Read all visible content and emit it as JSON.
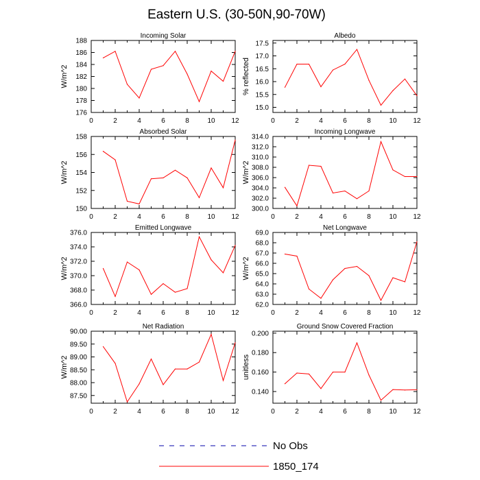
{
  "figure": {
    "title": "Eastern U.S. (30-50N,90-70W)",
    "line_color": "#ff0000",
    "obs_color": "#0000aa"
  },
  "legend": {
    "items": [
      {
        "label": "No Obs",
        "style": "dashed",
        "color": "#0000aa"
      },
      {
        "label": "1850_174",
        "style": "solid",
        "color": "#ff0000"
      }
    ]
  },
  "chart_data": [
    {
      "type": "line",
      "title": "Incoming Solar",
      "ylabel": "W/m^2",
      "xlim": [
        0,
        12
      ],
      "xticks": [
        0,
        2,
        4,
        6,
        8,
        10,
        12
      ],
      "ylim": [
        176,
        188
      ],
      "yticks": [
        176,
        178,
        180,
        182,
        184,
        186,
        188
      ],
      "ytick_decimals": 0,
      "series": [
        {
          "name": "1850_174",
          "x": [
            1,
            2,
            3,
            4,
            5,
            6,
            7,
            8,
            9,
            10,
            11,
            12
          ],
          "values": [
            185.1,
            186.2,
            180.7,
            178.4,
            183.2,
            183.8,
            186.2,
            182.4,
            177.8,
            182.9,
            181.2,
            186.2
          ]
        }
      ]
    },
    {
      "type": "line",
      "title": "Albedo",
      "ylabel": "% reflected",
      "xlim": [
        0,
        12
      ],
      "xticks": [
        0,
        2,
        4,
        6,
        8,
        10,
        12
      ],
      "ylim": [
        14.8,
        17.6
      ],
      "yticks": [
        15.0,
        15.5,
        16.0,
        16.5,
        17.0,
        17.5
      ],
      "ytick_decimals": 1,
      "series": [
        {
          "name": "1850_174",
          "x": [
            1,
            2,
            3,
            4,
            5,
            6,
            7,
            8,
            9,
            10,
            11,
            12
          ],
          "values": [
            15.78,
            16.68,
            16.68,
            15.8,
            16.45,
            16.68,
            17.25,
            16.05,
            15.08,
            15.65,
            16.1,
            15.45
          ]
        }
      ]
    },
    {
      "type": "line",
      "title": "Absorbed Solar",
      "ylabel": "W/m^2",
      "xlim": [
        0,
        12
      ],
      "xticks": [
        0,
        2,
        4,
        6,
        8,
        10,
        12
      ],
      "ylim": [
        150,
        158
      ],
      "yticks": [
        150,
        152,
        154,
        156,
        158
      ],
      "ytick_decimals": 0,
      "series": [
        {
          "name": "1850_174",
          "x": [
            1,
            2,
            3,
            4,
            5,
            6,
            7,
            8,
            9,
            10,
            11,
            12
          ],
          "values": [
            156.35,
            155.4,
            150.8,
            150.5,
            153.3,
            153.4,
            154.25,
            153.4,
            151.2,
            154.5,
            152.3,
            157.6
          ]
        }
      ]
    },
    {
      "type": "line",
      "title": "Incoming Longwave",
      "ylabel": "W/m^2",
      "xlim": [
        0,
        12
      ],
      "xticks": [
        0,
        2,
        4,
        6,
        8,
        10,
        12
      ],
      "ylim": [
        300,
        314
      ],
      "yticks": [
        300.0,
        302.0,
        304.0,
        306.0,
        308.0,
        310.0,
        312.0,
        314.0
      ],
      "ytick_decimals": 1,
      "series": [
        {
          "name": "1850_174",
          "x": [
            1,
            2,
            3,
            4,
            5,
            6,
            7,
            8,
            9,
            10,
            11,
            12
          ],
          "values": [
            304.1,
            300.5,
            308.4,
            308.2,
            303.0,
            303.4,
            301.9,
            303.4,
            313.0,
            307.5,
            306.2,
            306.2
          ]
        }
      ]
    },
    {
      "type": "line",
      "title": "Emitted Longwave",
      "ylabel": "W/m^2",
      "xlim": [
        0,
        12
      ],
      "xticks": [
        0,
        2,
        4,
        6,
        8,
        10,
        12
      ],
      "ylim": [
        366,
        376
      ],
      "yticks": [
        366.0,
        368.0,
        370.0,
        372.0,
        374.0,
        376.0
      ],
      "ytick_decimals": 1,
      "series": [
        {
          "name": "1850_174",
          "x": [
            1,
            2,
            3,
            4,
            5,
            6,
            7,
            8,
            9,
            10,
            11,
            12
          ],
          "values": [
            371.0,
            367.1,
            371.9,
            370.8,
            367.4,
            368.9,
            367.7,
            368.2,
            375.4,
            372.2,
            370.4,
            374.2
          ]
        }
      ]
    },
    {
      "type": "line",
      "title": "Net Longwave",
      "ylabel": "W/m^2",
      "xlim": [
        0,
        12
      ],
      "xticks": [
        0,
        2,
        4,
        6,
        8,
        10,
        12
      ],
      "ylim": [
        62,
        69
      ],
      "yticks": [
        62.0,
        63.0,
        64.0,
        65.0,
        66.0,
        67.0,
        68.0,
        69.0
      ],
      "ytick_decimals": 1,
      "series": [
        {
          "name": "1850_174",
          "x": [
            1,
            2,
            3,
            4,
            5,
            6,
            7,
            8,
            9,
            10,
            11,
            12
          ],
          "values": [
            66.9,
            66.7,
            63.5,
            62.6,
            64.4,
            65.5,
            65.7,
            64.8,
            62.4,
            64.6,
            64.2,
            68.1
          ]
        }
      ]
    },
    {
      "type": "line",
      "title": "Net Radiation",
      "ylabel": "W/m^2",
      "xlim": [
        0,
        12
      ],
      "xticks": [
        0,
        2,
        4,
        6,
        8,
        10,
        12
      ],
      "ylim": [
        87.2,
        90.0
      ],
      "yticks": [
        87.5,
        88.0,
        88.5,
        89.0,
        89.5,
        90.0
      ],
      "ytick_decimals": 2,
      "series": [
        {
          "name": "1850_174",
          "x": [
            1,
            2,
            3,
            4,
            5,
            6,
            7,
            8,
            9,
            10,
            11,
            12
          ],
          "values": [
            89.4,
            88.75,
            87.25,
            87.95,
            88.92,
            87.92,
            88.53,
            88.53,
            88.8,
            89.88,
            88.08,
            89.55
          ]
        }
      ]
    },
    {
      "type": "line",
      "title": "Ground Snow Covered Fraction",
      "ylabel": "unitless",
      "xlim": [
        0,
        12
      ],
      "xticks": [
        0,
        2,
        4,
        6,
        8,
        10,
        12
      ],
      "ylim": [
        0.128,
        0.202
      ],
      "yticks": [
        0.14,
        0.16,
        0.18,
        0.2
      ],
      "ytick_decimals": 3,
      "series": [
        {
          "name": "1850_174",
          "x": [
            1,
            2,
            3,
            4,
            5,
            6,
            7,
            8,
            9,
            10,
            11,
            12
          ],
          "values": [
            0.148,
            0.159,
            0.158,
            0.143,
            0.16,
            0.16,
            0.19,
            0.157,
            0.131,
            0.142,
            0.1415,
            0.1418
          ]
        }
      ]
    }
  ]
}
